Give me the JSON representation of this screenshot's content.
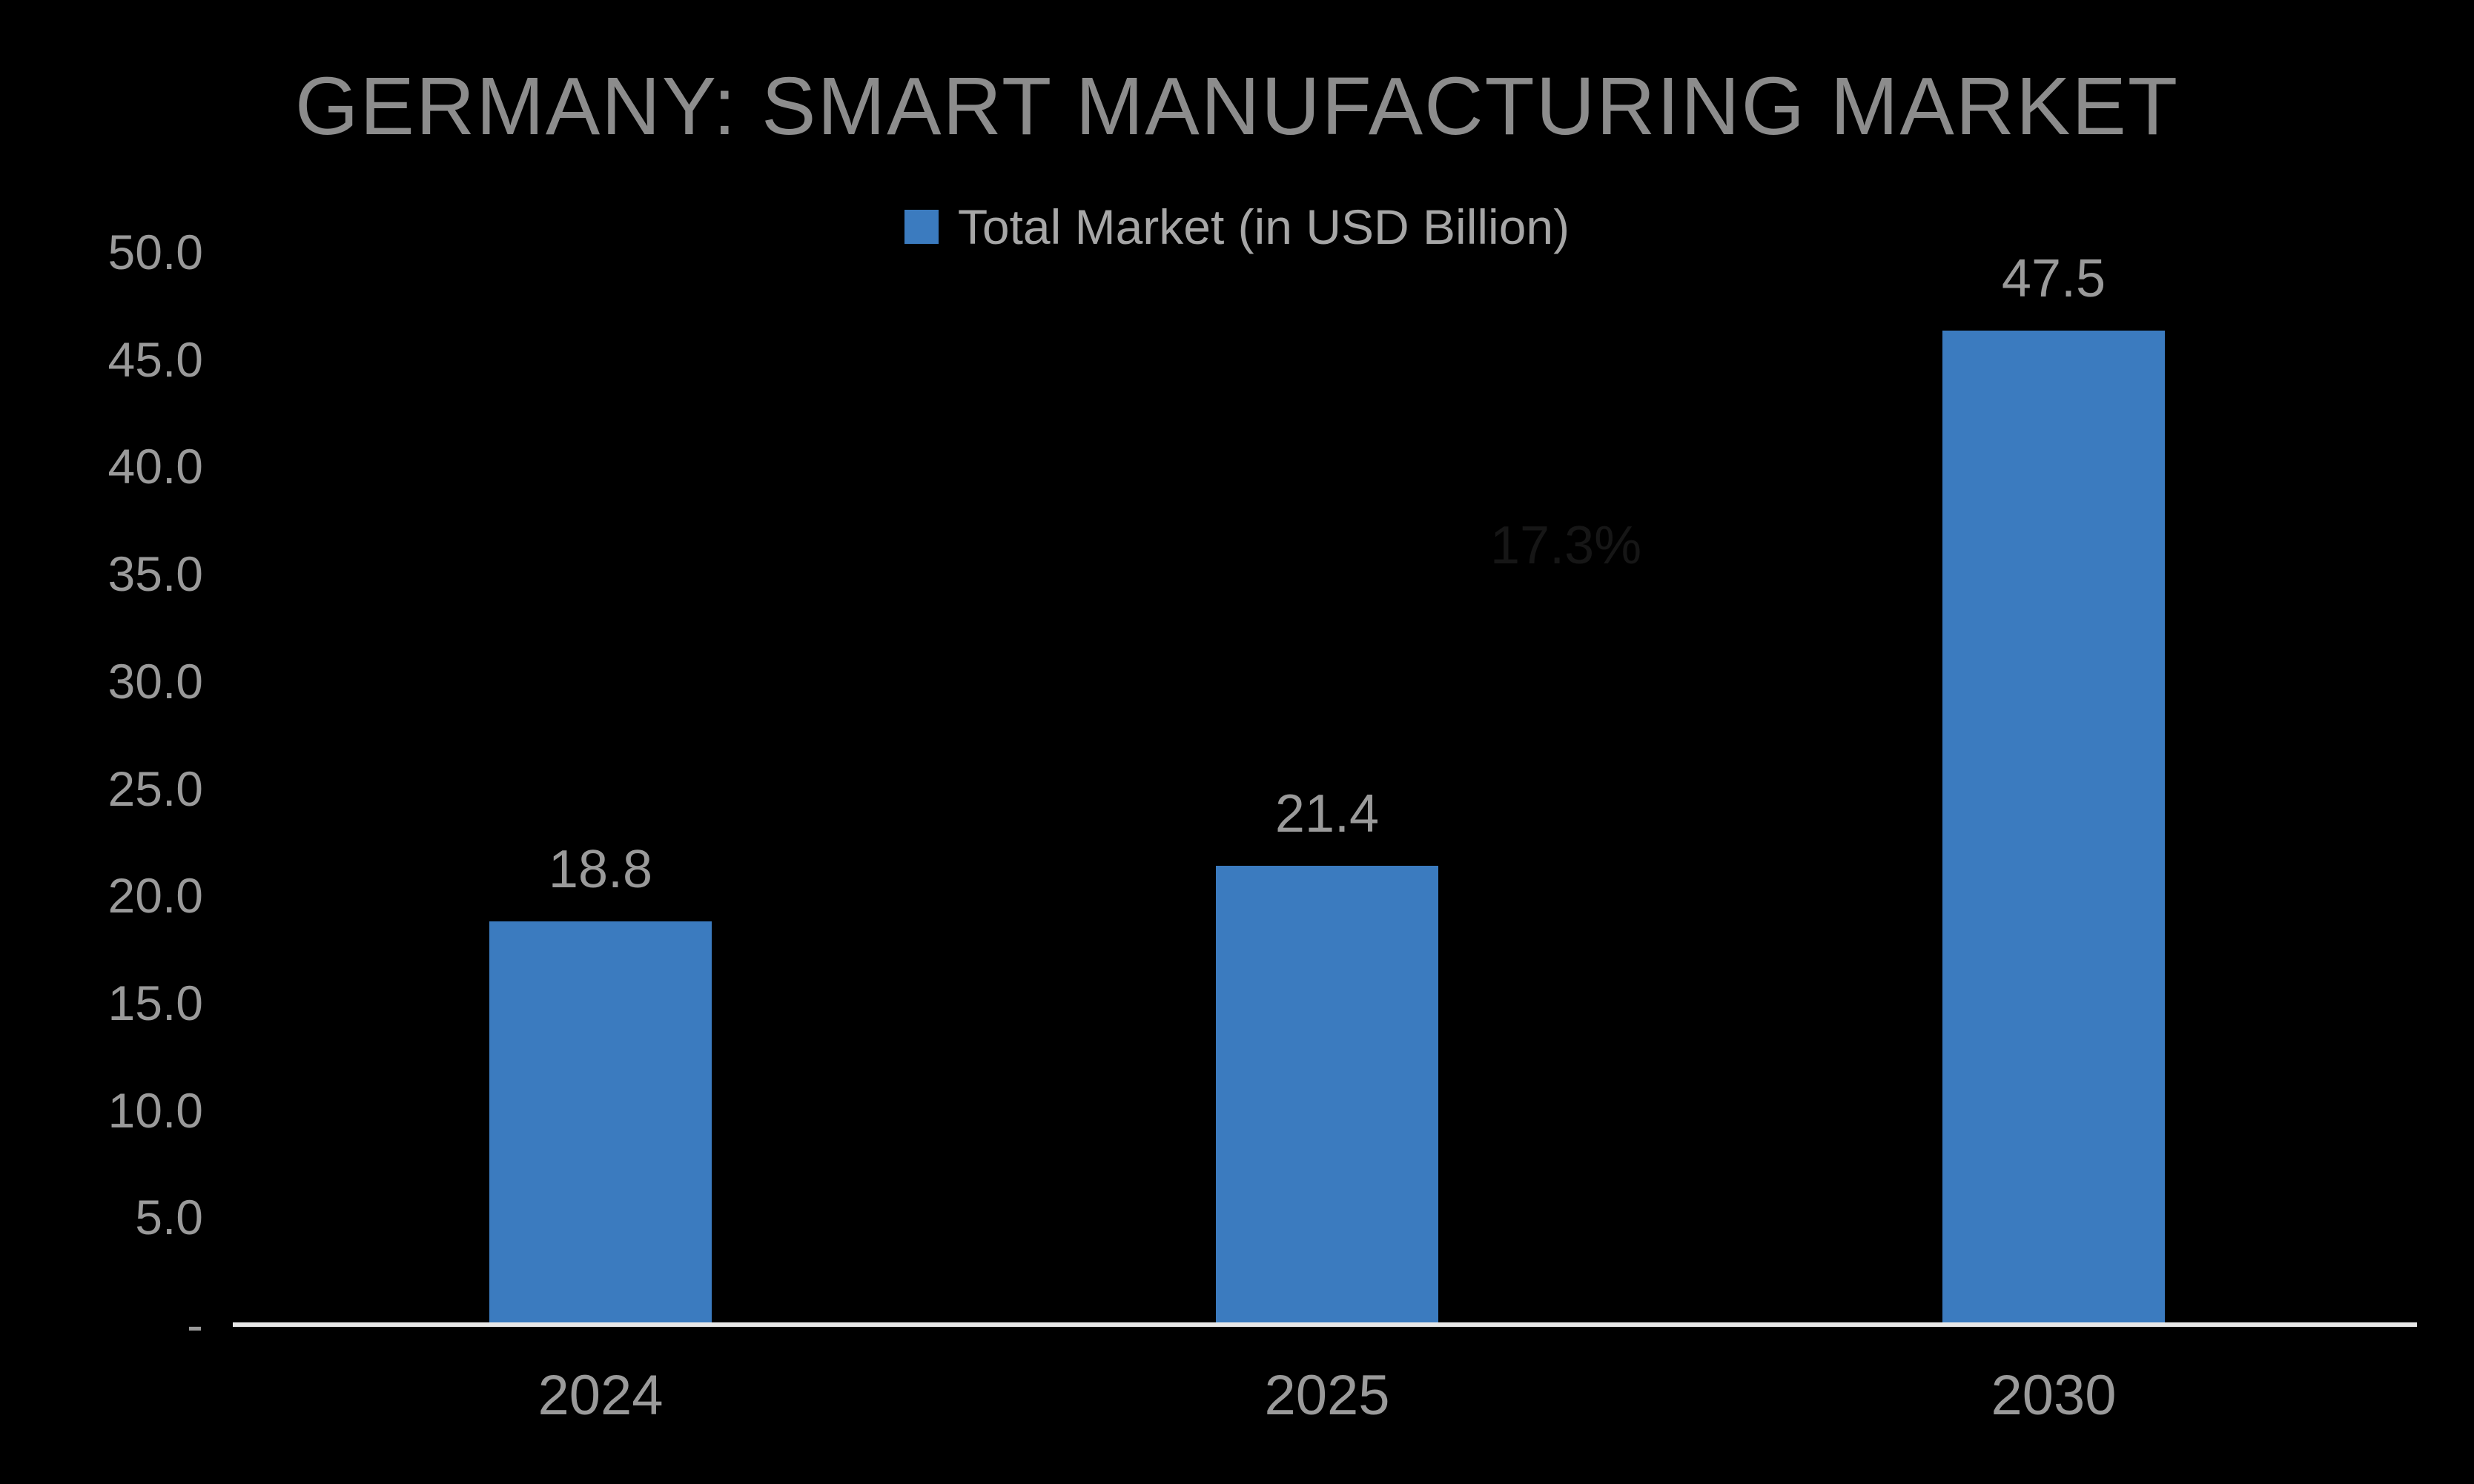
{
  "chart": {
    "title": "GERMANY: SMART MANUFACTURING MARKET",
    "legend_label": "Total Market (in USD Billion)",
    "annotation": "17.3%"
  },
  "chart_data": {
    "type": "bar",
    "title": "GERMANY: SMART MANUFACTURING MARKET",
    "categories": [
      "2024",
      "2025",
      "2030"
    ],
    "series": [
      {
        "name": "Total Market (in USD Billion)",
        "values": [
          18.8,
          21.4,
          47.5
        ]
      }
    ],
    "data_labels": [
      "18.8",
      "21.4",
      "47.5"
    ],
    "annotation": "17.3%",
    "xlabel": "",
    "ylabel": "",
    "ylim": [
      0,
      50
    ],
    "ytick_step": 5,
    "ytick_labels": [
      "-",
      "5.0",
      "10.0",
      "15.0",
      "20.0",
      "25.0",
      "30.0",
      "35.0",
      "40.0",
      "45.0",
      "50.0"
    ],
    "grid": false,
    "legend_position": "top-center",
    "colors": {
      "bar": "#3B7BBF",
      "background": "#000000",
      "title_text": "#8C8C8C",
      "label_text": "#9A9A9A",
      "axis_line": "#E8E8E8",
      "annotation_text": "#161616"
    }
  }
}
